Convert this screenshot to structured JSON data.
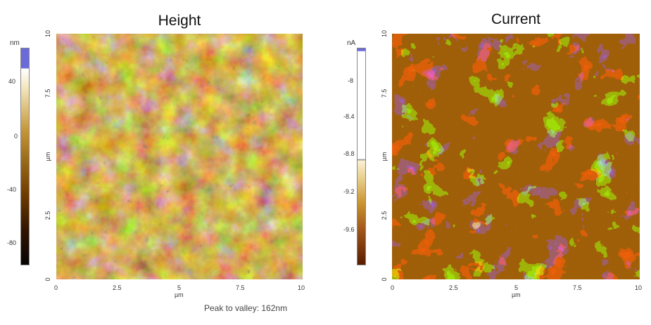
{
  "left_panel": {
    "title": "Height",
    "scale_unit": "nm",
    "scale_labels": [
      "40",
      "0",
      "-40",
      "-80"
    ],
    "x_ticks": [
      "0",
      "2.5",
      "5",
      "7.5",
      "10"
    ],
    "y_ticks": [
      "0",
      "2.5",
      "5",
      "7.5",
      "10"
    ],
    "axis_unit": "µm",
    "caption": "Peak to valley: 162nm",
    "colors": {
      "dark": "#2a1400",
      "mid": "#8a5a10",
      "light": "#f3e7c0",
      "accent_top": "#4b56c8"
    }
  },
  "right_panel": {
    "title": "Current",
    "scale_unit": "nA",
    "scale_labels": [
      "-8",
      "-8.4",
      "-8.8",
      "-9.2",
      "-9.6"
    ],
    "x_ticks": [
      "0",
      "2.5",
      "5",
      "7.5",
      "10"
    ],
    "y_ticks": [
      "0",
      "2.5",
      "5",
      "7.5",
      "10"
    ],
    "axis_unit": "µm",
    "colors": {
      "dark": "#5a1c00",
      "mid": "#b87a28",
      "light": "#fff6e0",
      "accent_top": "#4b56c8"
    }
  }
}
